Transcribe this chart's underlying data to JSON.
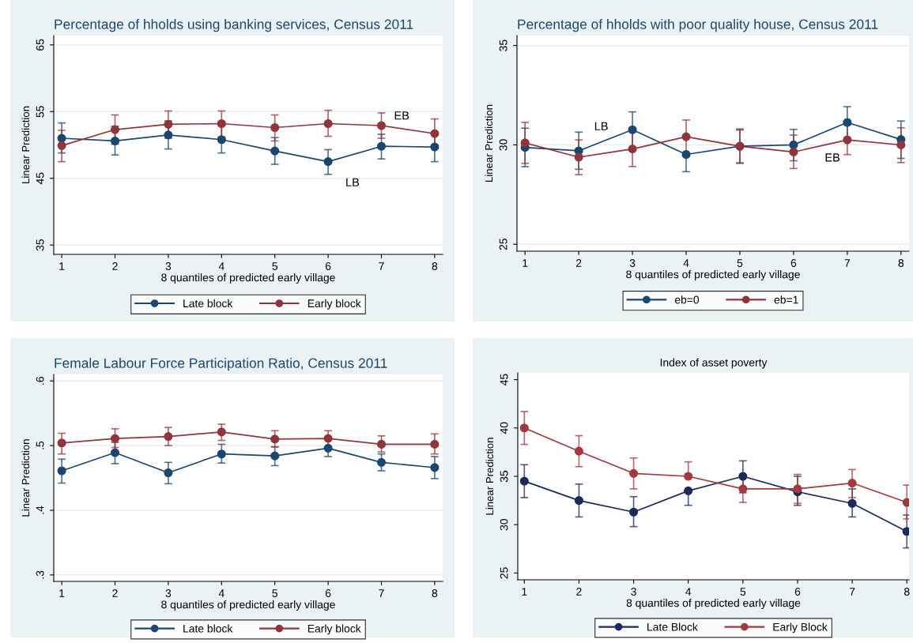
{
  "chart_data": [
    {
      "type": "line",
      "title": "Percentage of hholds using banking services, Census 2011",
      "xlabel": "8 quantiles of predicted early village",
      "ylabel": "Linear Prediction",
      "x": [
        1,
        2,
        3,
        4,
        5,
        6,
        7,
        8
      ],
      "xlim": [
        0.85,
        8.15
      ],
      "xticks": [
        1,
        2,
        3,
        4,
        5,
        6,
        7,
        8
      ],
      "ylim": [
        33.6,
        66.4
      ],
      "yticks": [
        35,
        45,
        55,
        65
      ],
      "grid": "y",
      "legend": "bottom",
      "marker": "circle",
      "line_style": "solid",
      "series": [
        {
          "name": "Late block",
          "color": "#1a476f",
          "values": [
            51.0,
            50.6,
            51.5,
            50.8,
            49.1,
            47.5,
            49.8,
            49.7
          ],
          "errors": [
            [
              48.8,
              53.3
            ],
            [
              48.5,
              52.8
            ],
            [
              49.4,
              53.6
            ],
            [
              48.8,
              52.9
            ],
            [
              47.1,
              51.1
            ],
            [
              45.6,
              49.3
            ],
            [
              47.9,
              51.6
            ],
            [
              47.5,
              51.9
            ]
          ]
        },
        {
          "name": "Early block",
          "color": "#90353b",
          "values": [
            49.9,
            52.3,
            53.1,
            53.2,
            52.6,
            53.2,
            52.9,
            51.7
          ],
          "errors": [
            [
              47.5,
              52.2
            ],
            [
              50.1,
              54.5
            ],
            [
              51.0,
              55.1
            ],
            [
              51.2,
              55.1
            ],
            [
              50.6,
              54.5
            ],
            [
              51.3,
              55.2
            ],
            [
              51.0,
              54.8
            ],
            [
              49.5,
              53.9
            ]
          ]
        }
      ],
      "annotations": [
        "EB",
        "LB"
      ]
    },
    {
      "type": "line",
      "title": "Percentage of hholds with poor quality house, Census 2011",
      "xlabel": "8 quantiles of predicted early village",
      "ylabel": "Linear Prediction",
      "x": [
        1,
        2,
        3,
        4,
        5,
        6,
        7,
        8
      ],
      "xlim": [
        0.85,
        8.15
      ],
      "xticks": [
        1,
        2,
        3,
        4,
        5,
        6,
        7,
        8
      ],
      "ylim": [
        24.65,
        35.5
      ],
      "yticks": [
        25,
        30,
        35
      ],
      "grid": "y",
      "legend": "bottom",
      "marker": "circle",
      "line_style": "solid",
      "series": [
        {
          "name": "eb=0",
          "color": "#1a476f",
          "values": [
            29.87,
            29.7,
            30.76,
            29.52,
            29.93,
            30.0,
            31.13,
            30.27
          ],
          "errors": [
            [
              28.9,
              30.84
            ],
            [
              28.77,
              30.64
            ],
            [
              29.85,
              31.66
            ],
            [
              28.65,
              29.52
            ],
            [
              29.07,
              30.8
            ],
            [
              29.2,
              30.78
            ],
            [
              30.36,
              31.92
            ],
            [
              29.32,
              31.2
            ]
          ]
        },
        {
          "name": "eb=1",
          "color": "#90353b",
          "values": [
            30.1,
            29.38,
            29.79,
            30.41,
            29.93,
            29.64,
            30.25,
            30.0
          ],
          "errors": [
            [
              29.07,
              31.13
            ],
            [
              28.5,
              30.25
            ],
            [
              28.91,
              30.66
            ],
            [
              29.58,
              31.25
            ],
            [
              29.1,
              30.74
            ],
            [
              28.81,
              30.49
            ],
            [
              29.51,
              31.01
            ],
            [
              29.11,
              30.86
            ]
          ]
        }
      ],
      "annotations": [
        "LB",
        "EB"
      ]
    },
    {
      "type": "line",
      "title": "Female Labour Force Participation Ratio, Census 2011",
      "xlabel": "8 quantiles of predicted early village",
      "ylabel": "Linear Prediction",
      "x": [
        1,
        2,
        3,
        4,
        5,
        6,
        7,
        8
      ],
      "xlim": [
        0.85,
        8.15
      ],
      "xticks": [
        1,
        2,
        3,
        4,
        5,
        6,
        7,
        8
      ],
      "ylim": [
        0.29,
        0.61
      ],
      "yticks": [
        {
          "value": 0.3,
          "label": ".3"
        },
        {
          "value": 0.4,
          "label": ".4"
        },
        {
          "value": 0.5,
          "label": ".5"
        },
        {
          "value": 0.6,
          "label": ".6"
        }
      ],
      "grid": "y",
      "legend": "bottom",
      "marker": "circle",
      "line_style": "solid",
      "series": [
        {
          "name": "Late block",
          "color": "#1a476f",
          "values": [
            0.461,
            0.489,
            0.458,
            0.487,
            0.484,
            0.496,
            0.474,
            0.466
          ],
          "errors": [
            [
              0.442,
              0.479
            ],
            [
              0.472,
              0.505
            ],
            [
              0.441,
              0.474
            ],
            [
              0.473,
              0.502
            ],
            [
              0.469,
              0.498
            ],
            [
              0.483,
              0.496
            ],
            [
              0.461,
              0.487
            ],
            [
              0.449,
              0.483
            ]
          ]
        },
        {
          "name": "Early block",
          "color": "#90353b",
          "values": [
            0.504,
            0.511,
            0.514,
            0.521,
            0.51,
            0.511,
            0.502,
            0.502
          ],
          "errors": [
            [
              0.487,
              0.519
            ],
            [
              0.497,
              0.526
            ],
            [
              0.5,
              0.528
            ],
            [
              0.508,
              0.533
            ],
            [
              0.498,
              0.523
            ],
            [
              0.498,
              0.523
            ],
            [
              0.49,
              0.515
            ],
            [
              0.487,
              0.518
            ]
          ]
        }
      ]
    },
    {
      "type": "line",
      "title": "Index of asset poverty",
      "xlabel": "8 quantiles of predicted early village",
      "ylabel": "Linear Prediction",
      "x": [
        1,
        2,
        3,
        4,
        5,
        6,
        7,
        8
      ],
      "xlim": [
        0.88,
        8.04
      ],
      "xticks": [
        1,
        2,
        3,
        4,
        5,
        6,
        7,
        8
      ],
      "ylim": [
        24.3,
        45.7
      ],
      "yticks": [
        25,
        30,
        35,
        40,
        45
      ],
      "grid": false,
      "legend": "bottom",
      "marker": "circle",
      "line_style": "solid",
      "series": [
        {
          "name": "Late Block",
          "color": "#1b2a5a",
          "values": [
            34.5,
            32.5,
            31.3,
            33.5,
            35.0,
            33.4,
            32.2,
            29.3
          ],
          "errors": [
            [
              32.8,
              36.2
            ],
            [
              30.8,
              34.2
            ],
            [
              29.8,
              32.9
            ],
            [
              32.0,
              33.5
            ],
            [
              33.3,
              36.6
            ],
            [
              32.0,
              35.0
            ],
            [
              30.8,
              33.7
            ],
            [
              27.6,
              31.0
            ]
          ]
        },
        {
          "name": "Early Block",
          "color": "#a03a40",
          "values": [
            40.0,
            37.6,
            35.3,
            35.0,
            33.7,
            33.7,
            34.3,
            32.3
          ],
          "errors": [
            [
              38.3,
              41.7
            ],
            [
              36.0,
              39.2
            ],
            [
              33.7,
              36.9
            ],
            [
              35.0,
              36.5
            ],
            [
              32.3,
              35.1
            ],
            [
              32.2,
              35.2
            ],
            [
              32.8,
              35.7
            ],
            [
              30.6,
              34.1
            ]
          ]
        }
      ]
    }
  ]
}
